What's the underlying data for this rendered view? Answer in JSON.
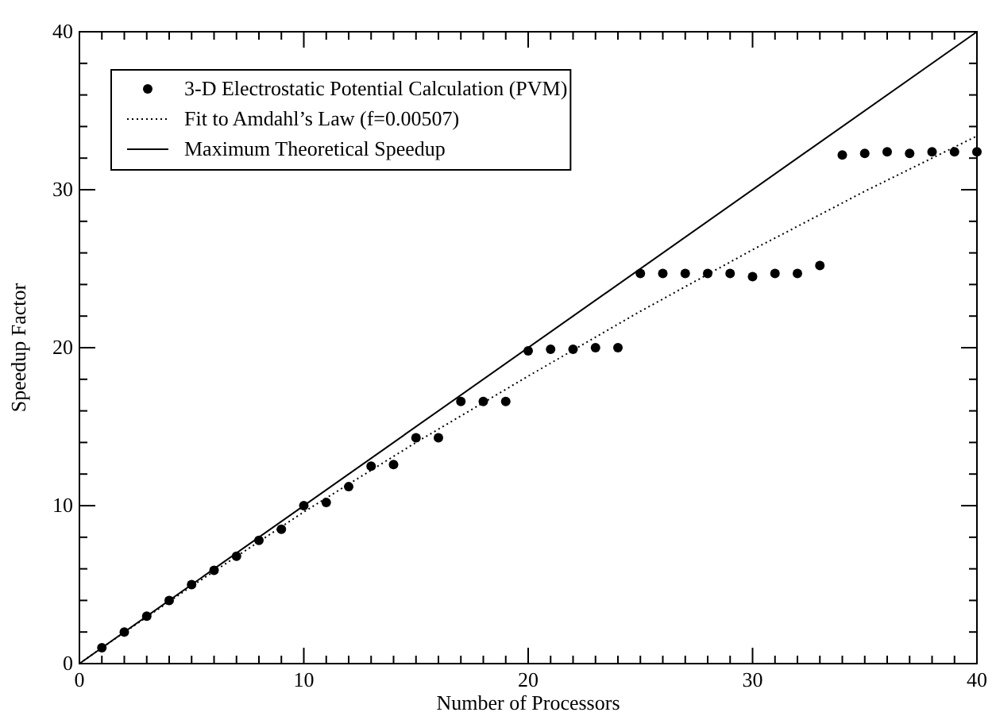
{
  "chart_data": {
    "type": "scatter",
    "xlabel": "Number of Processors",
    "ylabel": "Speedup Factor",
    "xlim": [
      0,
      40
    ],
    "ylim": [
      0,
      40
    ],
    "xticks": [
      0,
      {
        "value": 1,
        "label": null
      },
      {
        "value": 2,
        "label": null
      },
      {
        "value": 3,
        "label": null
      },
      {
        "value": 4,
        "label": null
      },
      {
        "value": 5,
        "label": null
      },
      {
        "value": 6,
        "label": null
      },
      {
        "value": 7,
        "label": null
      },
      {
        "value": 8,
        "label": null
      },
      {
        "value": 9,
        "label": null
      },
      10,
      {
        "value": 11,
        "label": null
      },
      {
        "value": 12,
        "label": null
      },
      {
        "value": 13,
        "label": null
      },
      {
        "value": 14,
        "label": null
      },
      {
        "value": 15,
        "label": null
      },
      {
        "value": 16,
        "label": null
      },
      {
        "value": 17,
        "label": null
      },
      {
        "value": 18,
        "label": null
      },
      {
        "value": 19,
        "label": null
      },
      20,
      {
        "value": 21,
        "label": null
      },
      {
        "value": 22,
        "label": null
      },
      {
        "value": 23,
        "label": null
      },
      {
        "value": 24,
        "label": null
      },
      {
        "value": 25,
        "label": null
      },
      {
        "value": 26,
        "label": null
      },
      {
        "value": 27,
        "label": null
      },
      {
        "value": 28,
        "label": null
      },
      {
        "value": 29,
        "label": null
      },
      30,
      {
        "value": 31,
        "label": null
      },
      {
        "value": 32,
        "label": null
      },
      {
        "value": 33,
        "label": null
      },
      {
        "value": 34,
        "label": null
      },
      {
        "value": 35,
        "label": null
      },
      {
        "value": 36,
        "label": null
      },
      {
        "value": 37,
        "label": null
      },
      {
        "value": 38,
        "label": null
      },
      {
        "value": 39,
        "label": null
      },
      40
    ],
    "yticks": [
      0,
      {
        "value": 2,
        "label": null
      },
      {
        "value": 4,
        "label": null
      },
      {
        "value": 6,
        "label": null
      },
      {
        "value": 8,
        "label": null
      },
      10,
      {
        "value": 12,
        "label": null
      },
      {
        "value": 14,
        "label": null
      },
      {
        "value": 16,
        "label": null
      },
      {
        "value": 18,
        "label": null
      },
      20,
      {
        "value": 22,
        "label": null
      },
      {
        "value": 24,
        "label": null
      },
      {
        "value": 26,
        "label": null
      },
      {
        "value": 28,
        "label": null
      },
      30,
      {
        "value": 32,
        "label": null
      },
      {
        "value": 34,
        "label": null
      },
      {
        "value": 36,
        "label": null
      },
      {
        "value": 38,
        "label": null
      },
      40
    ],
    "grid": false,
    "legend": "top left",
    "series": [
      {
        "name": "3-D Electrostatic Potential Calculation (PVM)",
        "marker": "circle",
        "color": "#000000",
        "x": [
          1,
          2,
          3,
          4,
          5,
          6,
          7,
          8,
          9,
          10,
          11,
          12,
          13,
          14,
          15,
          16,
          17,
          18,
          19,
          20,
          21,
          22,
          23,
          24,
          25,
          26,
          27,
          28,
          29,
          30,
          31,
          32,
          33,
          34,
          35,
          36,
          37,
          38,
          39,
          40
        ],
        "values": [
          1,
          2,
          3,
          4,
          5,
          5.9,
          6.8,
          7.8,
          8.5,
          10,
          10.2,
          11.2,
          12.5,
          12.6,
          14.3,
          14.3,
          16.6,
          16.6,
          16.6,
          19.8,
          19.9,
          19.9,
          20,
          20,
          24.7,
          24.7,
          24.7,
          24.7,
          24.7,
          24.5,
          24.7,
          24.7,
          25.2,
          32.2,
          32.3,
          32.4,
          32.3,
          32.4,
          32.4,
          32.4
        ]
      },
      {
        "name": "Fit to Amdahl’s Law (f=0.00507)",
        "type": "line",
        "line_style": "dotted",
        "marker": "none",
        "color": "#000000",
        "x": [
          0,
          1,
          5,
          10,
          15,
          20,
          25,
          30,
          35,
          40
        ],
        "values": [
          0,
          1,
          4.9,
          9.6,
          14,
          18.2,
          22.3,
          26.2,
          29.9,
          33.4
        ]
      },
      {
        "name": "Maximum Theoretical Speedup",
        "type": "line",
        "line_style": "solid",
        "marker": "none",
        "color": "#000000",
        "x": [
          0,
          40
        ],
        "values": [
          0,
          40
        ]
      }
    ]
  }
}
